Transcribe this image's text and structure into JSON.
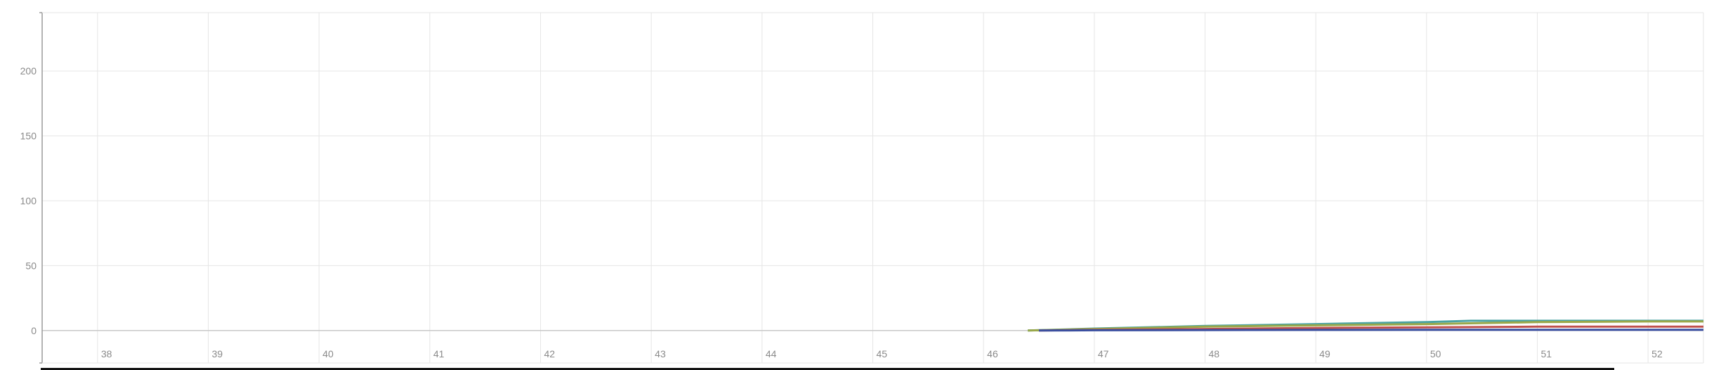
{
  "chart_data": {
    "type": "line",
    "title": "",
    "xlabel": "",
    "ylabel": "",
    "xlim": [
      37.5,
      52.5
    ],
    "ylim": [
      -25,
      245
    ],
    "x_ticks": [
      "38",
      "39",
      "40",
      "41",
      "42",
      "43",
      "44",
      "45",
      "46",
      "47",
      "48",
      "49",
      "50",
      "51",
      "52"
    ],
    "y_ticks": [
      "0",
      "50",
      "100",
      "150",
      "200"
    ],
    "grid": true,
    "series": [
      {
        "color": "#4aa3a3",
        "x": [
          46.4,
          47,
          48,
          49,
          50,
          50.4,
          51,
          52,
          52.5
        ],
        "y": [
          0,
          1.5,
          3.5,
          5,
          6.5,
          7.5,
          7.5,
          7.5,
          7.5
        ]
      },
      {
        "color": "#9aa84a",
        "x": [
          46.4,
          47,
          48,
          49,
          50,
          51,
          52,
          52.5
        ],
        "y": [
          0,
          1.2,
          3,
          4,
          5,
          6.5,
          7,
          7
        ]
      },
      {
        "color": "#c0504d",
        "x": [
          46.5,
          47,
          48,
          49,
          50,
          51,
          52,
          52.5
        ],
        "y": [
          0,
          0.5,
          1.2,
          2,
          2.5,
          3,
          3,
          3
        ]
      },
      {
        "color": "#3a4fa0",
        "x": [
          46.5,
          47,
          48,
          49,
          50,
          51,
          52,
          52.5
        ],
        "y": [
          0,
          0.2,
          0.4,
          0.5,
          0.6,
          0.6,
          0.6,
          0.6
        ]
      }
    ]
  }
}
